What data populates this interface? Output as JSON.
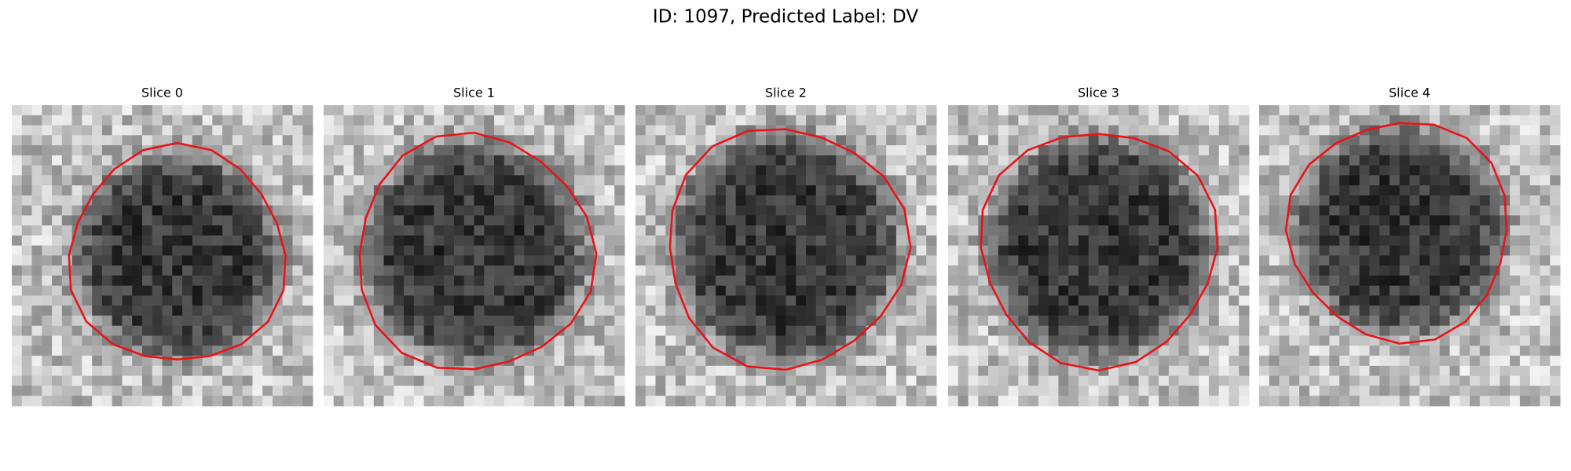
{
  "title": "ID: 1097, Predicted Label: DV",
  "panels": [
    {
      "label": "Slice 0"
    },
    {
      "label": "Slice 1"
    },
    {
      "label": "Slice 2"
    },
    {
      "label": "Slice 3"
    },
    {
      "label": "Slice 4"
    }
  ]
}
